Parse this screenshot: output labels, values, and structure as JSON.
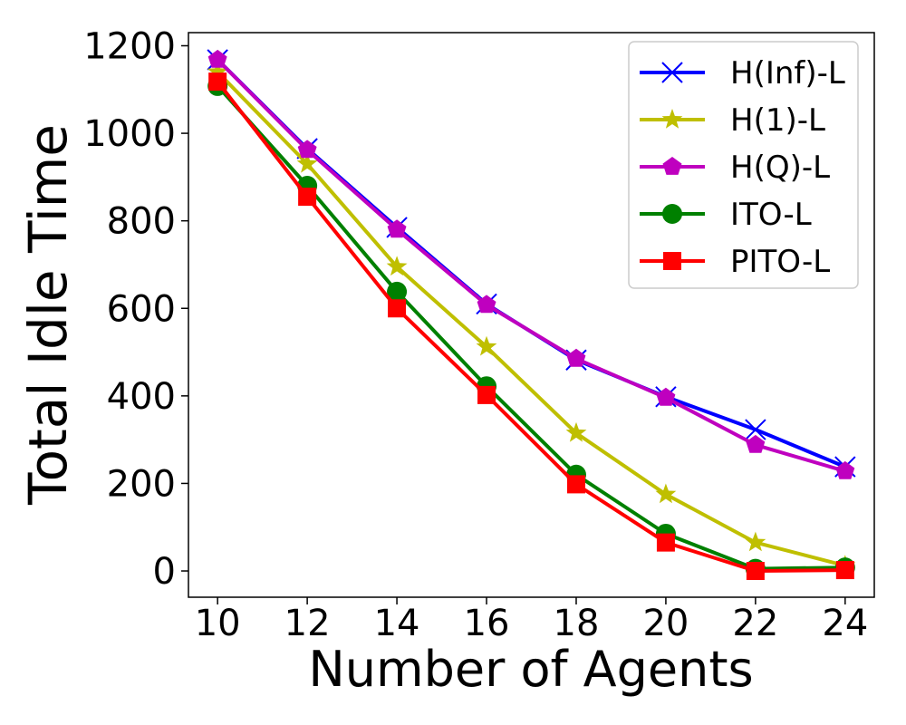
{
  "chart_data": {
    "type": "line",
    "title": "",
    "xlabel": "Number of Agents",
    "ylabel": "Total Idle Time",
    "x": [
      10,
      12,
      14,
      16,
      18,
      20,
      22,
      24
    ],
    "xlim": [
      9.35,
      24.65
    ],
    "ylim": [
      -60,
      1230
    ],
    "xticks": [
      "10",
      "12",
      "14",
      "16",
      "18",
      "20",
      "22",
      "24"
    ],
    "yticks": [
      "0",
      "200",
      "400",
      "600",
      "800",
      "1000",
      "1200"
    ],
    "grid": false,
    "legend_position": "top-right",
    "series": [
      {
        "name": "H(Inf)-L",
        "color": "#0000ff",
        "marker": "x",
        "values": [
          1168,
          965,
          785,
          610,
          482,
          398,
          323,
          238
        ]
      },
      {
        "name": "H(1)-L",
        "color": "#bfbf00",
        "marker": "star",
        "values": [
          1140,
          930,
          695,
          512,
          315,
          175,
          65,
          12
        ]
      },
      {
        "name": "H(Q)-L",
        "color": "#bf00bf",
        "marker": "pentagon",
        "values": [
          1168,
          962,
          780,
          608,
          485,
          396,
          288,
          228
        ]
      },
      {
        "name": "ITO-L",
        "color": "#008000",
        "marker": "circle",
        "values": [
          1108,
          880,
          638,
          422,
          220,
          85,
          5,
          8
        ]
      },
      {
        "name": "PITO-L",
        "color": "#ff0000",
        "marker": "square",
        "values": [
          1118,
          855,
          600,
          402,
          198,
          65,
          0,
          2
        ]
      }
    ]
  }
}
